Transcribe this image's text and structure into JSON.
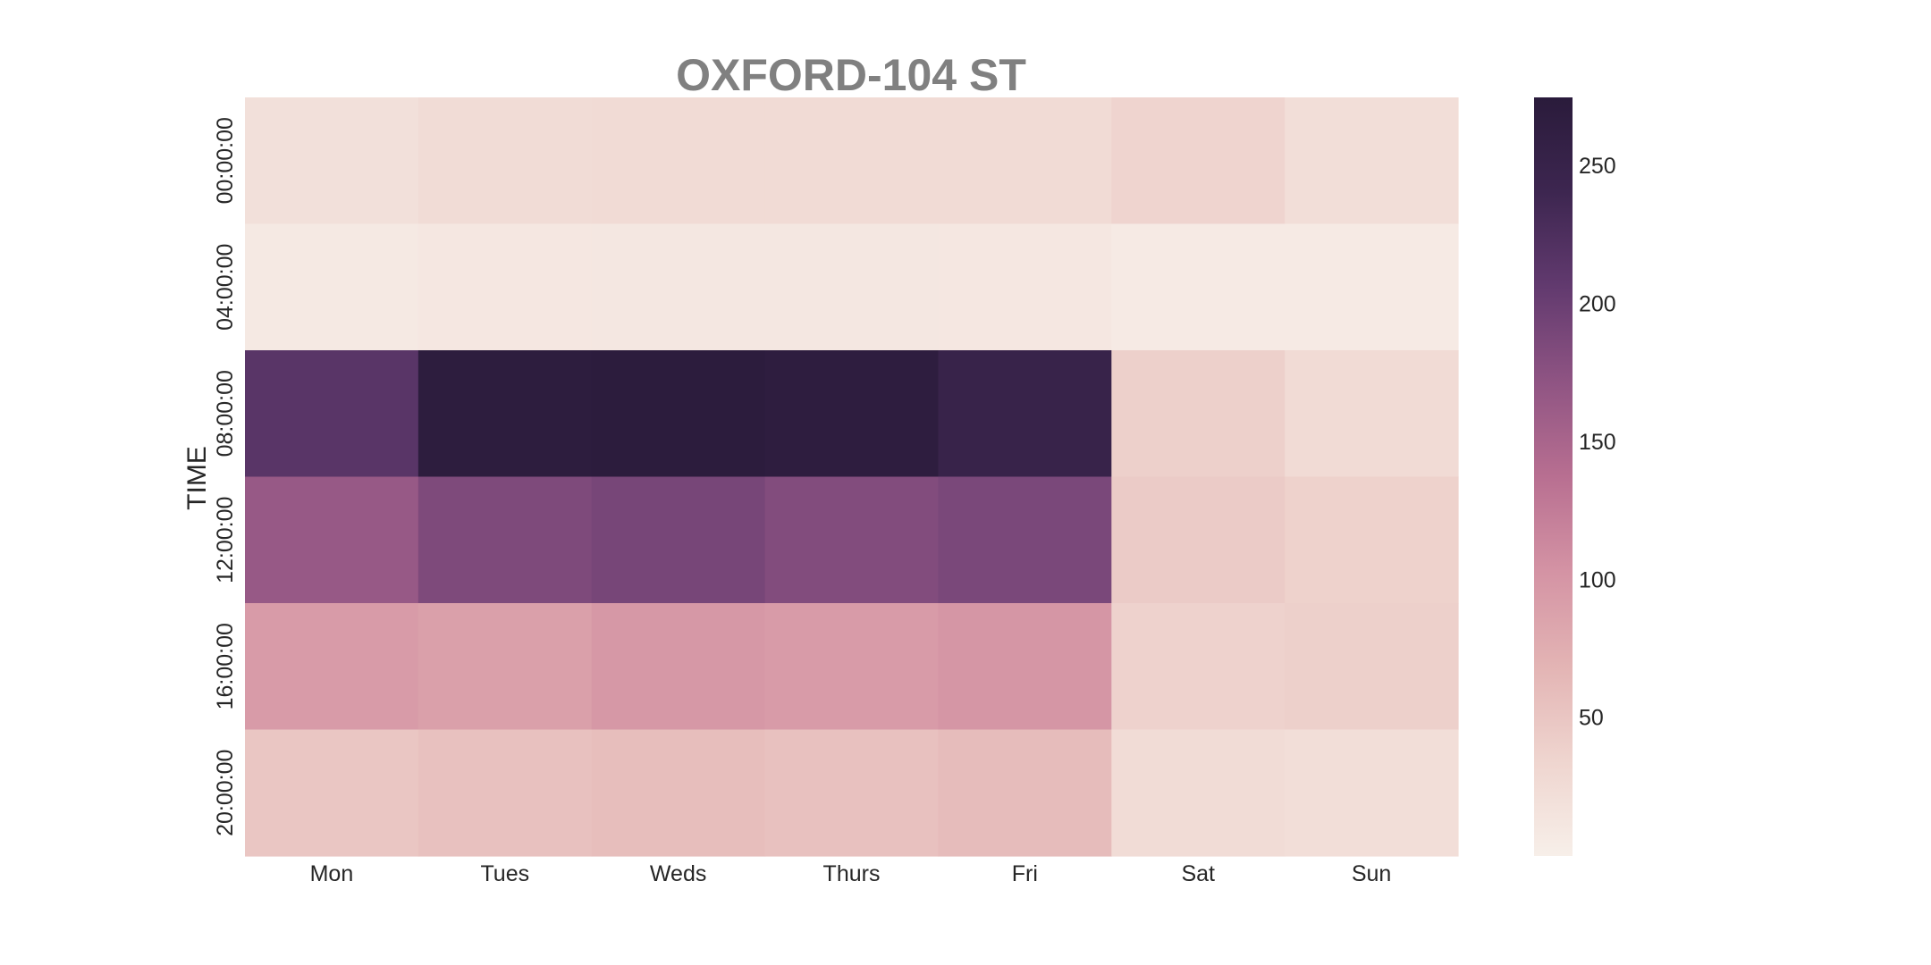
{
  "chart_data": {
    "type": "heatmap",
    "title": "OXFORD-104 ST",
    "xlabel": "",
    "ylabel": "TIME",
    "x_categories": [
      "Mon",
      "Tues",
      "Weds",
      "Thurs",
      "Fri",
      "Sat",
      "Sun"
    ],
    "y_categories": [
      "00:00:00",
      "04:00:00",
      "08:00:00",
      "12:00:00",
      "16:00:00",
      "20:00:00"
    ],
    "values": [
      [
        20,
        25,
        27,
        26,
        26,
        35,
        22
      ],
      [
        8,
        10,
        11,
        11,
        10,
        6,
        6
      ],
      [
        215,
        270,
        272,
        268,
        250,
        40,
        26
      ],
      [
        165,
        185,
        190,
        182,
        188,
        45,
        38
      ],
      [
        95,
        90,
        98,
        95,
        100,
        37,
        40
      ],
      [
        50,
        55,
        58,
        55,
        60,
        25,
        22
      ]
    ],
    "colorbar": {
      "vmin": 0,
      "vmax": 275,
      "ticks": [
        50,
        100,
        150,
        200,
        250
      ],
      "colors": [
        "#f7efe9",
        "#efd5cf",
        "#e3b4b4",
        "#d493a4",
        "#b86f91",
        "#8f5483",
        "#623a6f",
        "#3d2650",
        "#2a1b3b"
      ]
    }
  }
}
